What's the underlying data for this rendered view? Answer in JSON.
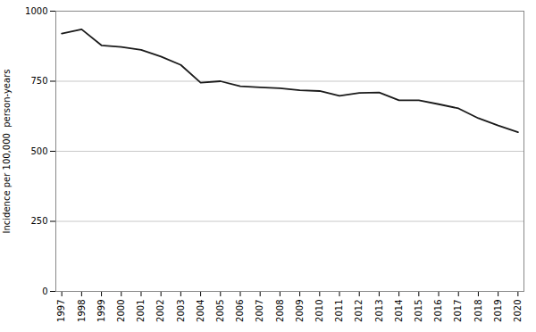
{
  "chart_data": {
    "type": "line",
    "x": [
      1997,
      1998,
      1999,
      2000,
      2001,
      2002,
      2003,
      2004,
      2005,
      2006,
      2007,
      2008,
      2009,
      2010,
      2011,
      2012,
      2013,
      2014,
      2015,
      2016,
      2017,
      2018,
      2019,
      2020
    ],
    "values": [
      920,
      935,
      878,
      872,
      862,
      838,
      808,
      745,
      750,
      732,
      728,
      725,
      718,
      715,
      698,
      708,
      710,
      682,
      682,
      668,
      653,
      618,
      592,
      568
    ],
    "ylabel": "Incidence per 100,000  person-years",
    "xlim": [
      1996.7,
      2020.3
    ],
    "xticks": [
      1997,
      1998,
      1999,
      2000,
      2001,
      2002,
      2003,
      2004,
      2005,
      2006,
      2007,
      2008,
      2009,
      2010,
      2011,
      2012,
      2013,
      2014,
      2015,
      2016,
      2017,
      2018,
      2019,
      2020
    ],
    "ylim": [
      0,
      1000
    ],
    "yticks": [
      0,
      250,
      500,
      750,
      1000
    ],
    "color": "#1a1a1a",
    "grid": true
  }
}
